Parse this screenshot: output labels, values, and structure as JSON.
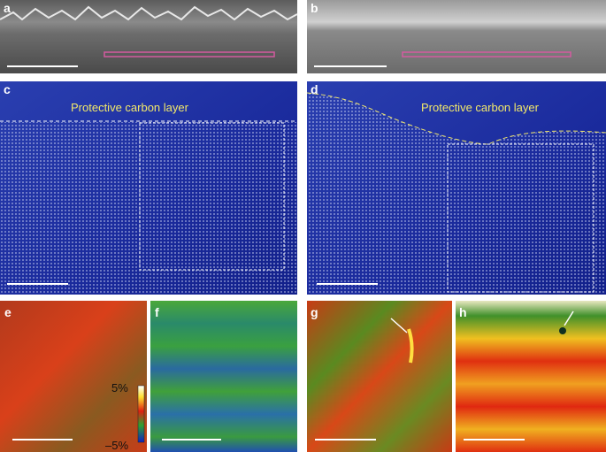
{
  "panels": {
    "a": "a",
    "b": "b",
    "c": "c",
    "d": "d",
    "e": "e",
    "f": "f",
    "g": "g",
    "h": "h"
  },
  "annotations": {
    "c": "Protective carbon layer",
    "d": "Protective carbon layer"
  },
  "colorbar": {
    "max": "5%",
    "min": "–5%"
  }
}
